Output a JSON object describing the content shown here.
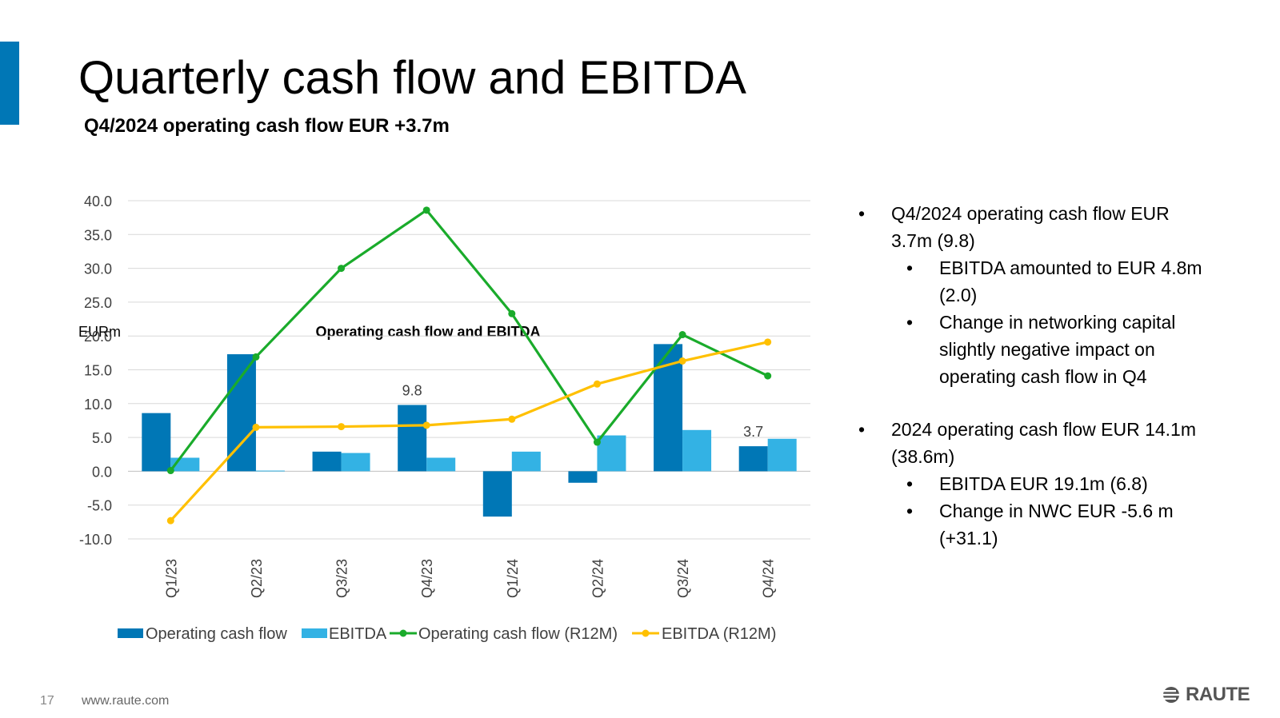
{
  "slide": {
    "title": "Quarterly cash flow and EBITDA",
    "subtitle": "Q4/2024 operating cash flow EUR +3.7m",
    "page_number": "17",
    "url": "www.raute.com",
    "logo_text": "RAUTE",
    "accent_color": "#0077b6"
  },
  "bullets": [
    {
      "level": 1,
      "text": [
        "Q4/2024 operating cash flow EUR",
        "3.7m (9.8)"
      ]
    },
    {
      "level": 2,
      "text": [
        "EBITDA amounted to EUR 4.8m",
        "(2.0)"
      ]
    },
    {
      "level": 2,
      "text": [
        "Change in networking capital",
        "slightly negative impact on",
        "operating cash flow in Q4"
      ]
    },
    {
      "level": 1,
      "text": [
        "2024 operating cash flow EUR 14.1m",
        "(38.6m)"
      ],
      "gap_before": true
    },
    {
      "level": 2,
      "text": [
        "EBITDA EUR 19.1m (6.8)"
      ]
    },
    {
      "level": 2,
      "text": [
        "Change in NWC EUR -5.6 m",
        "(+31.1)"
      ]
    }
  ],
  "chart_data": {
    "type": "bar",
    "title": "Operating cash flow and EBITDA",
    "ylabel": "EURm",
    "ylim": [
      -10,
      40
    ],
    "yticks": [
      40,
      35,
      30,
      25,
      20,
      15,
      10,
      5,
      0,
      -5,
      -10
    ],
    "ytick_labels": [
      "40.0",
      "35.0",
      "30.0",
      "25.0",
      "20.0",
      "15.0",
      "10.0",
      "5.0",
      "0.0",
      "-5.0",
      "-10.0"
    ],
    "grid": true,
    "legend_position": "bottom",
    "categories": [
      "Q1/23",
      "Q2/23",
      "Q3/23",
      "Q4/23",
      "Q1/24",
      "Q2/24",
      "Q3/24",
      "Q4/24"
    ],
    "series": [
      {
        "name": "Operating cash flow",
        "kind": "bar",
        "color": "#0077b6",
        "values": [
          8.6,
          17.3,
          2.9,
          9.8,
          -6.7,
          -1.7,
          18.8,
          3.7
        ],
        "labels": [
          "",
          "",
          "",
          "9.8",
          "",
          "",
          "",
          "3.7"
        ]
      },
      {
        "name": "EBITDA",
        "kind": "bar",
        "color": "#33b2e4",
        "values": [
          2.0,
          0.1,
          2.7,
          2.0,
          2.9,
          5.3,
          6.1,
          4.8
        ]
      },
      {
        "name": "Operating cash flow (R12M)",
        "kind": "line",
        "color": "#1aab2b",
        "values": [
          0.1,
          16.9,
          30.0,
          38.6,
          23.3,
          4.3,
          20.2,
          14.1
        ]
      },
      {
        "name": "EBITDA (R12M)",
        "kind": "line",
        "color": "#ffc000",
        "values": [
          -7.3,
          6.5,
          6.6,
          6.8,
          7.7,
          12.9,
          16.3,
          19.1
        ]
      }
    ]
  }
}
